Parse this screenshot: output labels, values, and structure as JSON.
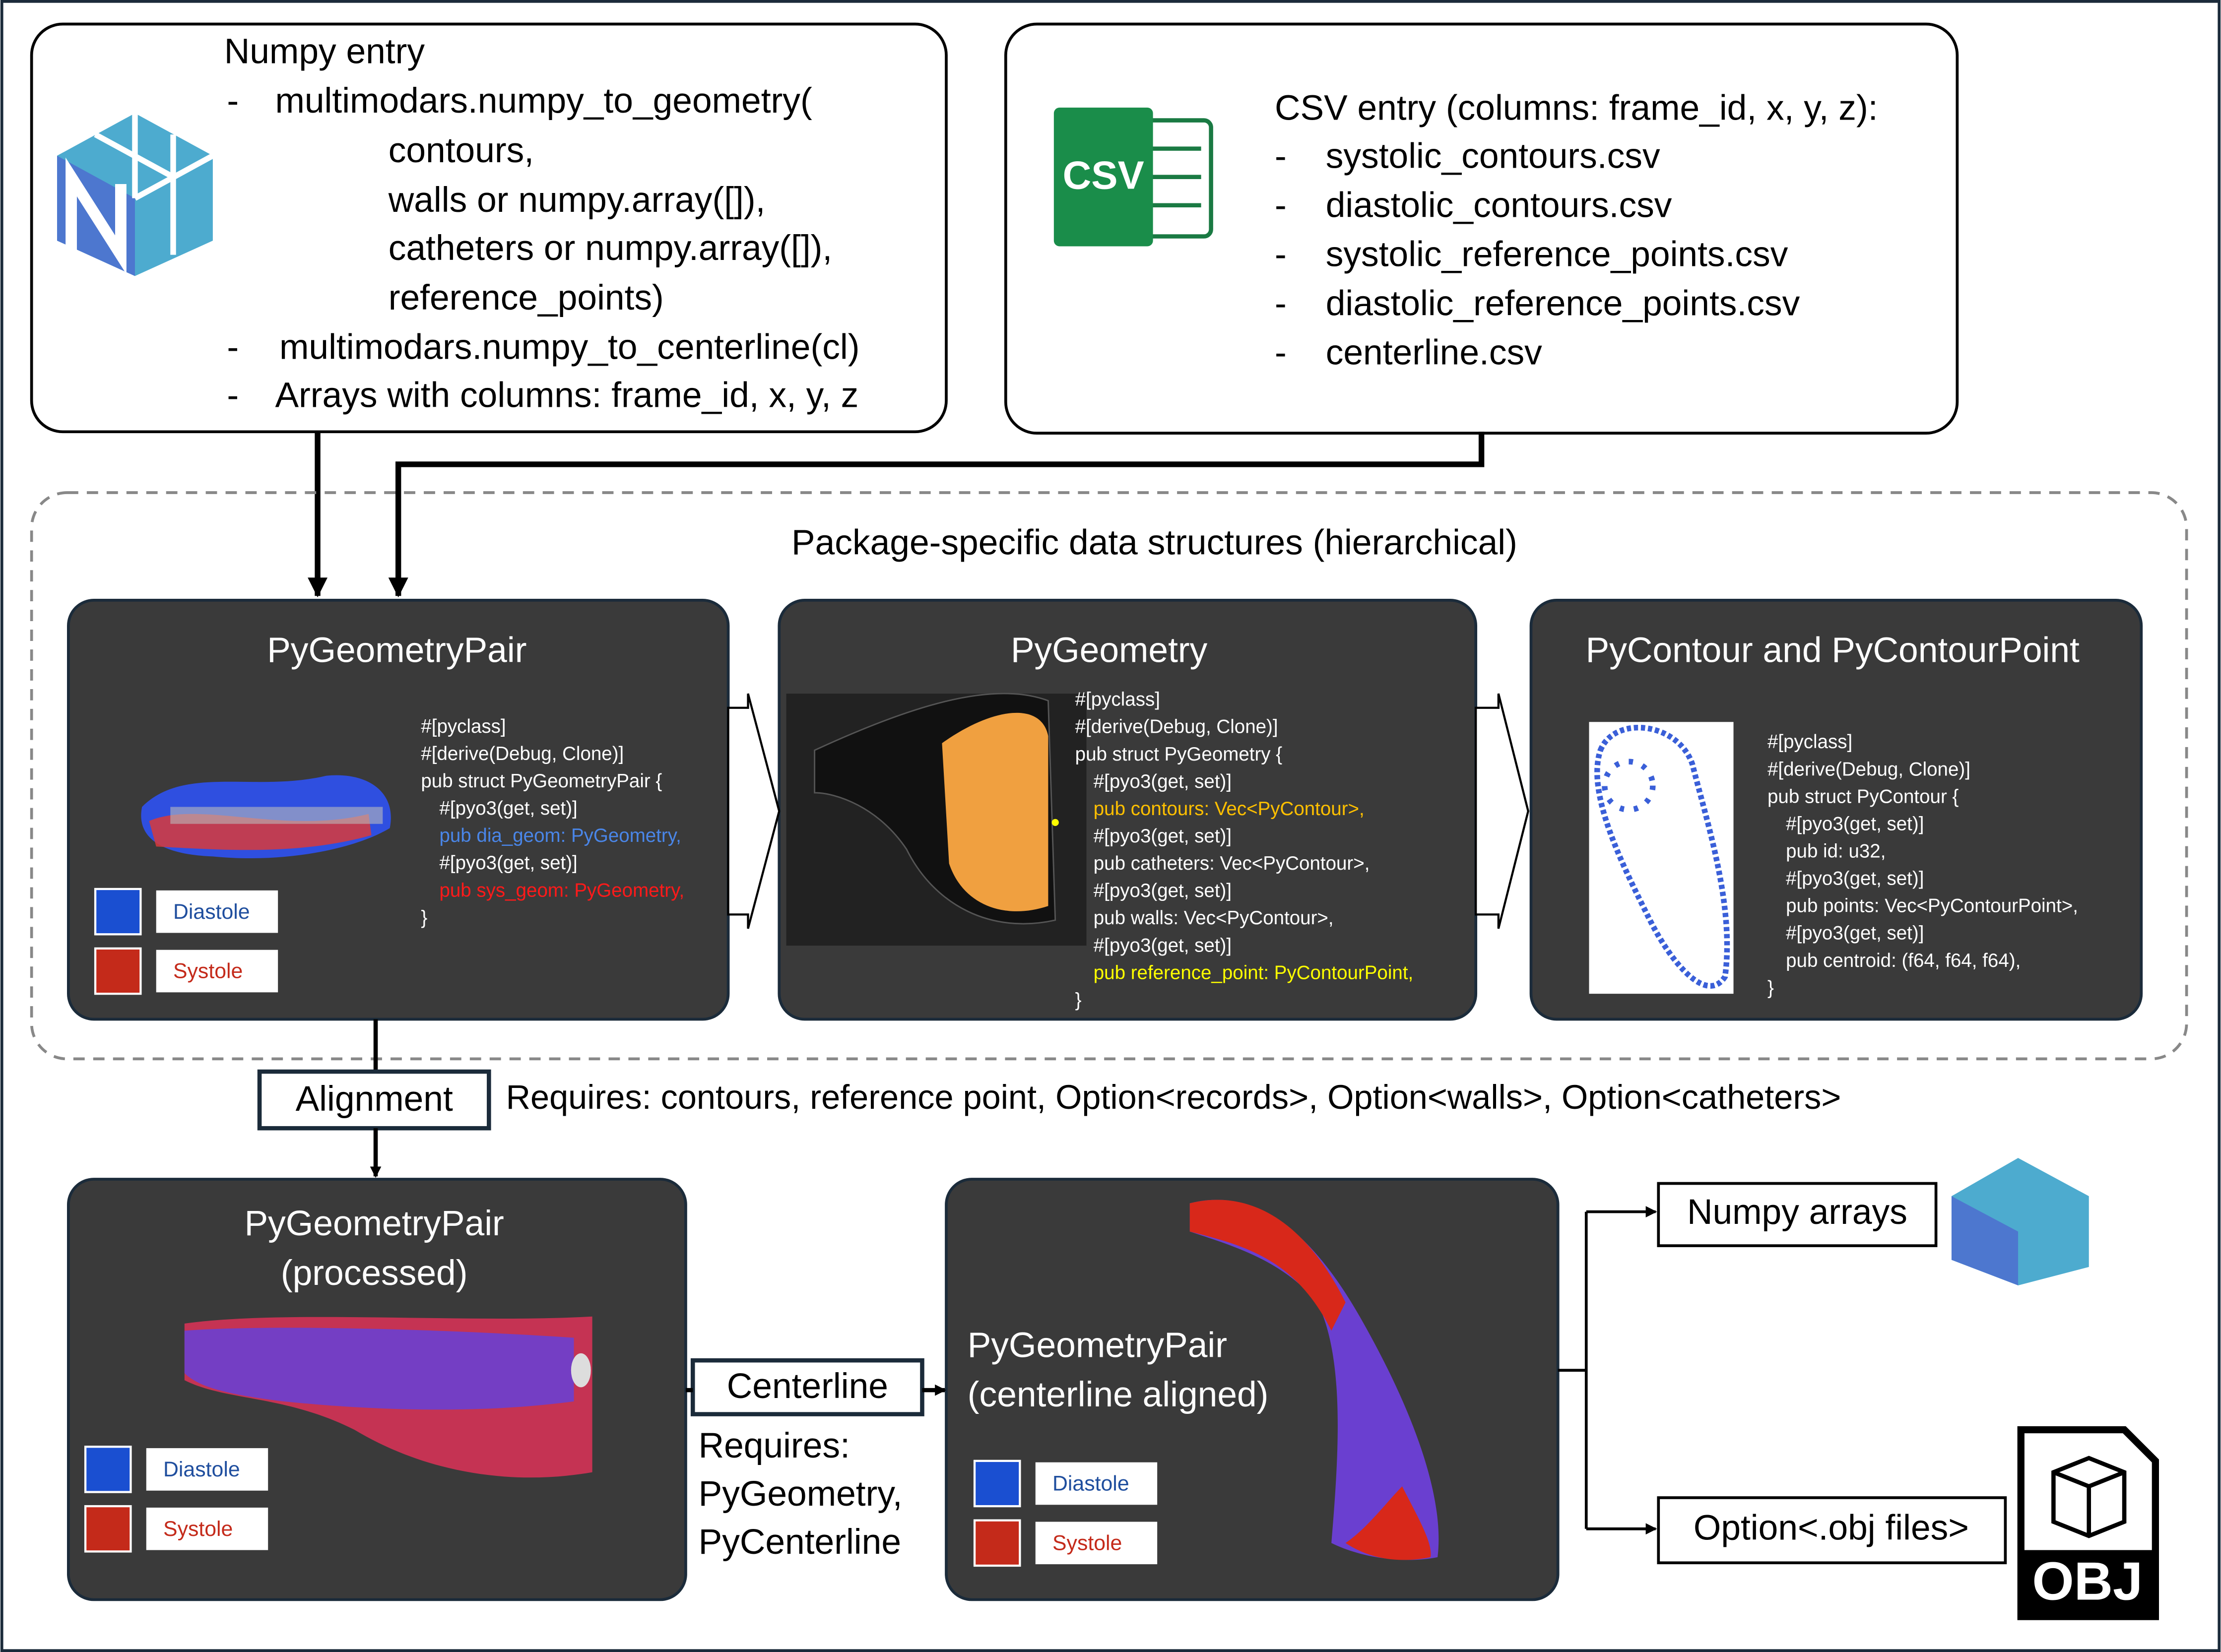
{
  "numpy_entry": {
    "title": "Numpy entry",
    "bullet": "-",
    "lines": [
      "multimodars.numpy_to_geometry(",
      "contours,",
      "walls or numpy.array([]),",
      "catheters or numpy.array([]),",
      "reference_points)",
      "multimodars.numpy_to_centerline(cl)",
      "Arrays with columns: frame_id, x, y, z"
    ]
  },
  "csv_entry": {
    "icon_label": "CSV",
    "title": "CSV entry (columns: frame_id, x, y, z):",
    "bullet": "-",
    "files": [
      "systolic_contours.csv",
      "diastolic_contours.csv",
      "systolic_reference_points.csv",
      "diastolic_reference_points.csv",
      "centerline.csv"
    ]
  },
  "package": {
    "title": "Package-specific data structures (hierarchical)"
  },
  "geometry_pair": {
    "title": "PyGeometryPair",
    "code": [
      {
        "text": "#[pyclass]",
        "color": "#ffffff"
      },
      {
        "text": "#[derive(Debug, Clone)]",
        "color": "#ffffff"
      },
      {
        "text": "pub struct PyGeometryPair {",
        "color": "#ffffff"
      },
      {
        "text": "#[pyo3(get, set)]",
        "color": "#ffffff"
      },
      {
        "text": "pub dia_geom: PyGeometry,",
        "color": "#4a86e8"
      },
      {
        "text": "#[pyo3(get, set)]",
        "color": "#ffffff"
      },
      {
        "text": "pub sys_geom: PyGeometry,",
        "color": "#ff1a1a"
      },
      {
        "text": "}",
        "color": "#ffffff"
      }
    ],
    "legend": [
      "Diastole",
      "Systole"
    ]
  },
  "geometry": {
    "title": "PyGeometry",
    "code": [
      {
        "text": "#[pyclass]",
        "color": "#ffffff"
      },
      {
        "text": "#[derive(Debug, Clone)]",
        "color": "#ffffff"
      },
      {
        "text": "pub struct PyGeometry {",
        "color": "#ffffff"
      },
      {
        "text": "#[pyo3(get, set)]",
        "color": "#ffffff"
      },
      {
        "text": "pub contours: Vec<PyContour>,",
        "color": "#ffc000"
      },
      {
        "text": "#[pyo3(get, set)]",
        "color": "#ffffff"
      },
      {
        "text": "pub catheters: Vec<PyContour>,",
        "color": "#ffffff"
      },
      {
        "text": "#[pyo3(get, set)]",
        "color": "#ffffff"
      },
      {
        "text": "pub walls: Vec<PyContour>,",
        "color": "#ffffff"
      },
      {
        "text": "#[pyo3(get, set)]",
        "color": "#ffffff"
      },
      {
        "text": "pub reference_point: PyContourPoint,",
        "color": "#ffff00"
      },
      {
        "text": "}",
        "color": "#ffffff"
      }
    ]
  },
  "contour": {
    "title": "PyContour and PyContourPoint",
    "code": [
      {
        "text": "#[pyclass]",
        "color": "#ffffff"
      },
      {
        "text": "#[derive(Debug, Clone)]",
        "color": "#ffffff"
      },
      {
        "text": "pub struct PyContour {",
        "color": "#ffffff"
      },
      {
        "text": "#[pyo3(get, set)]",
        "color": "#ffffff"
      },
      {
        "text": "pub id: u32,",
        "color": "#ffffff"
      },
      {
        "text": "#[pyo3(get, set)]",
        "color": "#ffffff"
      },
      {
        "text": "pub points: Vec<PyContourPoint>,",
        "color": "#ffffff"
      },
      {
        "text": "#[pyo3(get, set)]",
        "color": "#ffffff"
      },
      {
        "text": "pub centroid: (f64, f64, f64),",
        "color": "#ffffff"
      },
      {
        "text": "}",
        "color": "#ffffff"
      }
    ]
  },
  "alignment": {
    "label": "Alignment",
    "requires": "Requires: contours, reference point, Option<records>, Option<walls>, Option<catheters>"
  },
  "processed": {
    "title": [
      "PyGeometryPair",
      "(processed)"
    ],
    "legend": [
      "Diastole",
      "Systole"
    ]
  },
  "centerline": {
    "label": "Centerline",
    "requires": [
      "Requires:",
      "PyGeometry,",
      "PyCenterline"
    ]
  },
  "aligned": {
    "title": [
      "PyGeometryPair",
      "(centerline aligned)"
    ],
    "legend": [
      "Diastole",
      "Systole"
    ]
  },
  "outputs": {
    "items": [
      "Numpy arrays",
      "Option<.obj files>"
    ],
    "obj_icon": "OBJ"
  }
}
